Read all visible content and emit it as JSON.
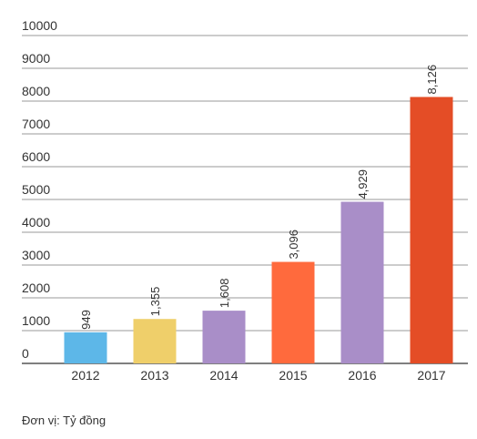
{
  "chart_data": {
    "type": "bar",
    "categories": [
      "2012",
      "2013",
      "2014",
      "2015",
      "2016",
      "2017"
    ],
    "values": [
      949,
      1355,
      1608,
      3096,
      4929,
      8126
    ],
    "value_labels": [
      "949",
      "1,355",
      "1,608",
      "3,096",
      "4,929",
      "8,126"
    ],
    "bar_colors": [
      "#5db7e8",
      "#efcf6a",
      "#a98ec8",
      "#ff6a3d",
      "#a98ec8",
      "#e44d26"
    ],
    "ylim": [
      0,
      10000
    ],
    "yticks": [
      0,
      1000,
      2000,
      3000,
      4000,
      5000,
      6000,
      7000,
      8000,
      9000,
      10000
    ],
    "ytick_labels": [
      "0",
      "1000",
      "2000",
      "3000",
      "4000",
      "5000",
      "6000",
      "7000",
      "8000",
      "9000",
      "10000"
    ],
    "grid": true,
    "gridline_color": "#9a9a9a",
    "axis_color": "#555555",
    "label_rotation": "vertical",
    "title": "",
    "xlabel": "",
    "ylabel": ""
  },
  "footnote": "Đơn vị: Tỷ đồng"
}
